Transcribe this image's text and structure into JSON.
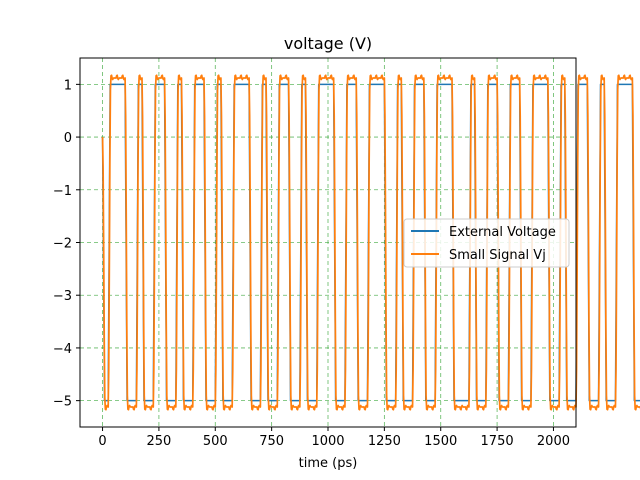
{
  "chart_data": {
    "type": "line",
    "title": "voltage (V)",
    "xlabel": "time (ps)",
    "ylabel": "",
    "xlim": [
      -100,
      2100
    ],
    "ylim": [
      -5.5,
      1.5
    ],
    "xticks": [
      0,
      250,
      500,
      750,
      1000,
      1250,
      1500,
      1750,
      2000
    ],
    "yticks": [
      1,
      0,
      -1,
      -2,
      -3,
      -4,
      -5
    ],
    "ytick_labels": [
      "1",
      "0",
      "−1",
      "−2",
      "−3",
      "−4",
      "−5"
    ],
    "grid": true,
    "grid_color": "#2ca02c",
    "legend_position": "center-right",
    "series": [
      {
        "name": "External Voltage",
        "color": "#1f77b4",
        "levels": {
          "high": 1,
          "low": -5
        },
        "bit_period_ps": 25,
        "bits": [
          0,
          1,
          1,
          1,
          0,
          0,
          1,
          0,
          0,
          1,
          1,
          0,
          0,
          1,
          0,
          0,
          1,
          1,
          0,
          0,
          1,
          0,
          0,
          1,
          1,
          1,
          0,
          0,
          1,
          0,
          0,
          1,
          1,
          0,
          0,
          1,
          0,
          0,
          1,
          1,
          1,
          0,
          0,
          1,
          1,
          0,
          0,
          1,
          1,
          1,
          0,
          0,
          1,
          0,
          0,
          1,
          1,
          0,
          0,
          1,
          1,
          1,
          0,
          0,
          0,
          1,
          0,
          0,
          1,
          1,
          0,
          0,
          1,
          1,
          0,
          0,
          1,
          1,
          1,
          0,
          0,
          1,
          0,
          0,
          1,
          1,
          0,
          0,
          1,
          0,
          0,
          1,
          1,
          1,
          0,
          0,
          1,
          1,
          0,
          0,
          1,
          1
        ]
      },
      {
        "name": "Small Signal Vj",
        "color": "#ff7f0e",
        "levels": {
          "high": 1.12,
          "low": -5.12
        },
        "bit_period_ps": 25,
        "bits": [
          0,
          1,
          1,
          1,
          0,
          0,
          1,
          0,
          0,
          1,
          1,
          0,
          0,
          1,
          0,
          0,
          1,
          1,
          0,
          0,
          1,
          0,
          0,
          1,
          1,
          1,
          0,
          0,
          1,
          0,
          0,
          1,
          1,
          0,
          0,
          1,
          0,
          0,
          1,
          1,
          1,
          0,
          0,
          1,
          1,
          0,
          0,
          1,
          1,
          1,
          0,
          0,
          1,
          0,
          0,
          1,
          1,
          0,
          0,
          1,
          1,
          1,
          0,
          0,
          0,
          1,
          0,
          0,
          1,
          1,
          0,
          0,
          1,
          1,
          0,
          0,
          1,
          1,
          1,
          0,
          0,
          1,
          0,
          0,
          1,
          1,
          0,
          0,
          1,
          0,
          0,
          1,
          1,
          1,
          0,
          0,
          1,
          1,
          0,
          0,
          1,
          1
        ]
      }
    ]
  }
}
